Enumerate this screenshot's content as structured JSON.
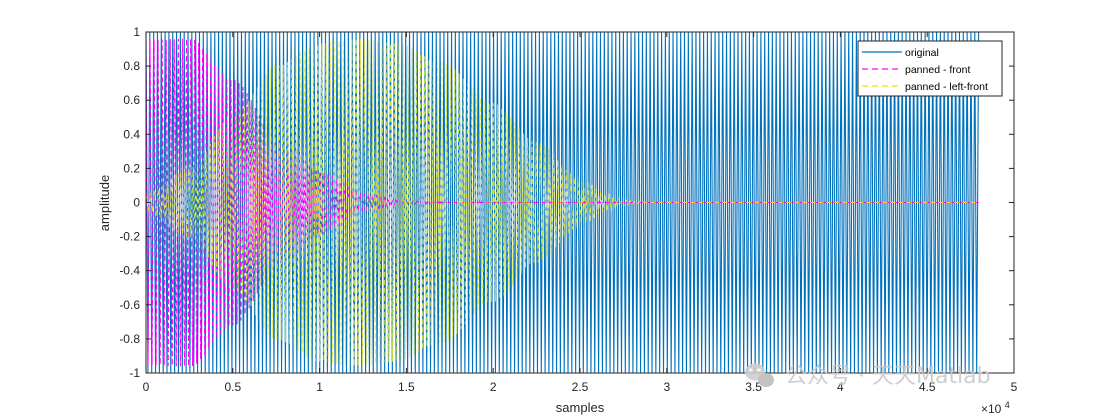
{
  "chart_data": {
    "type": "line",
    "xlabel": "samples",
    "ylabel": "amplitude",
    "x_exponent_label": "×10",
    "x_exponent_power": "4",
    "xlim": [
      0,
      50000
    ],
    "ylim": [
      -1,
      1
    ],
    "x_ticks": [
      0,
      5000,
      10000,
      15000,
      20000,
      25000,
      30000,
      35000,
      40000,
      45000,
      50000
    ],
    "x_tick_labels": [
      "0",
      "0.5",
      "1",
      "1.5",
      "2",
      "2.5",
      "3",
      "3.5",
      "4",
      "4.5",
      "5"
    ],
    "y_ticks": [
      -1,
      -0.8,
      -0.6,
      -0.4,
      -0.2,
      0,
      0.2,
      0.4,
      0.6,
      0.8,
      1
    ],
    "y_tick_labels": [
      "-1",
      "-0.8",
      "-0.6",
      "-0.4",
      "-0.2",
      "0",
      "0.2",
      "0.4",
      "0.6",
      "0.8",
      "1"
    ],
    "grid": false,
    "legend_position": "top-right",
    "series": [
      {
        "name": "original",
        "color": "#0072BD",
        "style": "solid",
        "x_range": [
          0,
          48000
        ],
        "envelope": [
          [
            0,
            1
          ],
          [
            48000,
            1
          ]
        ]
      },
      {
        "name": "panned - front",
        "color": "#FF00FF",
        "style": "dashed",
        "x_range": [
          0,
          48000
        ],
        "envelope": [
          [
            0,
            0.95
          ],
          [
            2500,
            0.96
          ],
          [
            5000,
            0.72
          ],
          [
            7500,
            0.4
          ],
          [
            10000,
            0.18
          ],
          [
            12500,
            0.05
          ],
          [
            15000,
            0.01
          ],
          [
            17500,
            0
          ],
          [
            48000,
            0
          ]
        ]
      },
      {
        "name": "panned - left-front",
        "color": "#FFFF00",
        "style": "dashed",
        "x_range": [
          0,
          48000
        ],
        "envelope": [
          [
            0,
            0.05
          ],
          [
            2500,
            0.2
          ],
          [
            5000,
            0.5
          ],
          [
            7500,
            0.8
          ],
          [
            10000,
            0.93
          ],
          [
            12000,
            0.96
          ],
          [
            14500,
            0.93
          ],
          [
            17000,
            0.82
          ],
          [
            20000,
            0.58
          ],
          [
            22500,
            0.35
          ],
          [
            25000,
            0.14
          ],
          [
            26500,
            0.05
          ],
          [
            28000,
            0.01
          ],
          [
            29000,
            0
          ],
          [
            48000,
            0
          ]
        ]
      }
    ]
  },
  "watermark": {
    "text": "公众号 · 天天Matlab",
    "icon": "wechat-icon"
  }
}
